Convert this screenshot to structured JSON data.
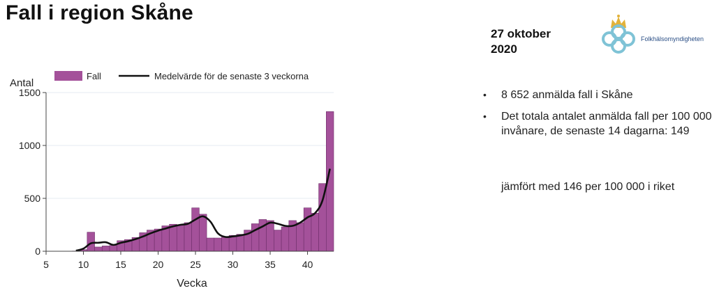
{
  "slide": {
    "title": "Fall i region Skåne",
    "date_line1": "27 oktober",
    "date_line2": "2020",
    "logo_text": "Folkhälsomyndigheten",
    "bullets": [
      "8 652 anmälda fall i Skåne",
      "Det totala antalet anmälda fall per 100 000 invånare, de senaste 14 dagarna: 149"
    ],
    "comparison": "jämfört med 146 per 100 000 i riket"
  },
  "colors": {
    "bar_fill": "#a4519a",
    "bar_stroke": "#6e2e6a",
    "line": "#111111",
    "grid": "#e6ebf0",
    "logo_crown": "#e2b23a",
    "logo_rings": "#7fc3d6"
  },
  "chart_data": {
    "type": "bar",
    "ylabel": "Antal",
    "xlabel": "Vecka",
    "xlim": [
      5,
      43.5
    ],
    "ylim": [
      0,
      1500
    ],
    "xticks": [
      5,
      10,
      15,
      20,
      25,
      30,
      35,
      40
    ],
    "yticks": [
      0,
      500,
      1000,
      1500
    ],
    "grid": true,
    "legend_position": "top",
    "bar_series": {
      "name": "Fall",
      "x": [
        9,
        10,
        11,
        12,
        13,
        14,
        15,
        16,
        17,
        18,
        19,
        20,
        21,
        22,
        23,
        24,
        25,
        26,
        27,
        28,
        29,
        30,
        31,
        32,
        33,
        34,
        35,
        36,
        37,
        38,
        39,
        40,
        41,
        42,
        43
      ],
      "values": [
        2,
        15,
        180,
        40,
        50,
        55,
        100,
        110,
        130,
        175,
        200,
        210,
        240,
        255,
        250,
        270,
        410,
        350,
        125,
        125,
        140,
        150,
        160,
        200,
        260,
        300,
        290,
        200,
        230,
        290,
        270,
        410,
        360,
        640,
        1320
      ]
    },
    "line_series": {
      "name": "Medelvärde för de senaste 3 veckorna",
      "x": [
        9,
        10,
        11,
        12,
        13,
        14,
        15,
        16,
        17,
        18,
        19,
        20,
        21,
        22,
        23,
        24,
        25,
        26,
        27,
        28,
        29,
        30,
        31,
        32,
        33,
        34,
        35,
        36,
        37,
        38,
        39,
        40,
        41,
        42,
        43
      ],
      "values": [
        5,
        25,
        75,
        80,
        85,
        60,
        80,
        95,
        115,
        140,
        170,
        195,
        215,
        235,
        250,
        260,
        300,
        330,
        280,
        170,
        135,
        140,
        150,
        165,
        200,
        235,
        270,
        260,
        240,
        240,
        270,
        320,
        360,
        480,
        780
      ]
    }
  }
}
